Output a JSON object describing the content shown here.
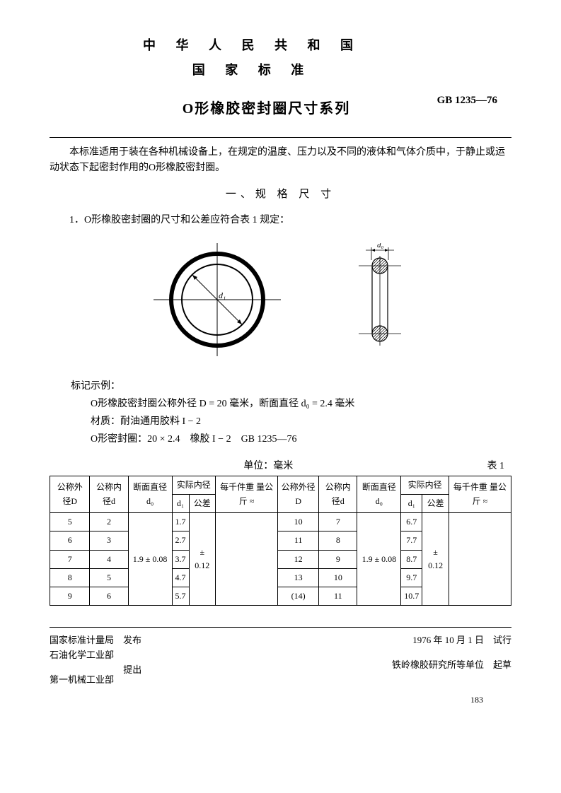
{
  "header": {
    "country_line1": "中 华 人 民 共 和 国",
    "country_line2": "国 家 标 准",
    "code": "GB 1235—76",
    "title": "O形橡胶密封圈尺寸系列"
  },
  "intro": "本标准适用于装在各种机械设备上，在规定的温度、压力以及不同的液体和气体介质中，于静止或运动状态下起密封作用的O形橡胶密封圈。",
  "section1_title": "一、规 格 尺 寸",
  "item1": "1．O形橡胶密封圈的尺寸和公差应符合表 1 规定：",
  "diagram": {
    "d1_label": "d₁",
    "d0_label": "d₀",
    "ring_outer_r": 65,
    "ring_inner_r": 50,
    "stroke": "#000000",
    "fill_hatch": "#555555"
  },
  "example": {
    "heading": "标记示例：",
    "line1": "O形橡胶密封圈公称外径 D = 20 毫米，断面直径 d₀ = 2.4 毫米",
    "line2": "材质：耐油通用胶料 I − 2",
    "line3": "O形密封圈：20 × 2.4　橡胶 I − 2　GB 1235—76"
  },
  "table": {
    "unit_label": "单位：毫米",
    "table_label": "表 1",
    "headers": {
      "D": "公称外径D",
      "d": "公称内径d",
      "d0": "断面直径 d₀",
      "actual_inner": "实际内径",
      "d1": "d₁",
      "tol": "公差",
      "weight": "每千件重 量公斤 ≈"
    },
    "left_rows": [
      {
        "D": "5",
        "d": "2",
        "d1": "1.7"
      },
      {
        "D": "6",
        "d": "3",
        "d1": "2.7"
      },
      {
        "D": "7",
        "d": "4",
        "d1": "3.7"
      },
      {
        "D": "8",
        "d": "5",
        "d1": "4.7"
      },
      {
        "D": "9",
        "d": "6",
        "d1": "5.7"
      }
    ],
    "right_rows": [
      {
        "D": "10",
        "d": "7",
        "d1": "6.7"
      },
      {
        "D": "11",
        "d": "8",
        "d1": "7.7"
      },
      {
        "D": "12",
        "d": "9",
        "d1": "8.7"
      },
      {
        "D": "13",
        "d": "10",
        "d1": "9.7"
      },
      {
        "D": "(14)",
        "d": "11",
        "d1": "10.7"
      }
    ],
    "d0_value": "1.9 ± 0.08",
    "tol_value": "± 0.12"
  },
  "footer": {
    "left1": "国家标准计量局　发布",
    "left2": "石油化学工业部",
    "left3": "第一机械工业部",
    "left_suffix": "提出",
    "right1": "1976 年 10 月 1 日　试行",
    "right2": "铁岭橡胶研究所等单位　起草",
    "page": "183"
  }
}
